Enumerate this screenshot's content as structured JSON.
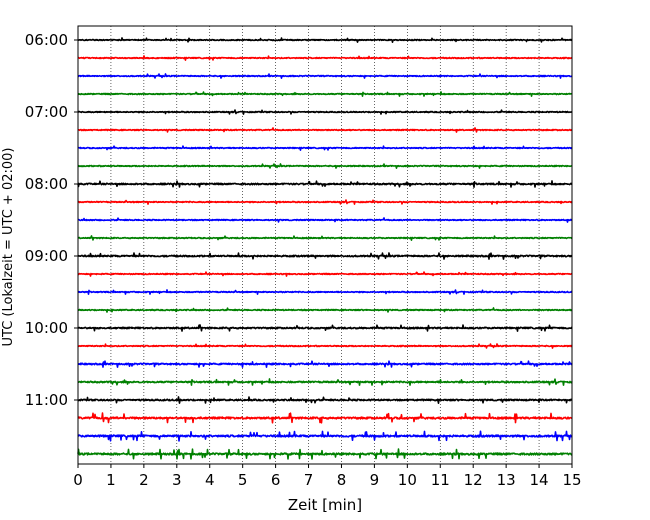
{
  "chart_data": {
    "type": "line",
    "title": "",
    "xlabel": "Zeit  [min]",
    "ylabel": "UTC (Lokalzeit = UTC + 02:00)",
    "xlim": [
      0,
      15
    ],
    "x_ticks": [
      0,
      1,
      2,
      3,
      4,
      5,
      6,
      7,
      8,
      9,
      10,
      11,
      12,
      13,
      14,
      15
    ],
    "y_ticks": [
      "06:00",
      "07:00",
      "08:00",
      "09:00",
      "10:00",
      "11:00"
    ],
    "grid": "vertical dotted",
    "trace_colors": [
      "#000000",
      "#ff0000",
      "#0000ff",
      "#008000"
    ],
    "traces": [
      {
        "start": "06:00",
        "color": "#000000",
        "amplitude": "low"
      },
      {
        "start": "06:15",
        "color": "#ff0000",
        "amplitude": "low"
      },
      {
        "start": "06:30",
        "color": "#0000ff",
        "amplitude": "low"
      },
      {
        "start": "06:45",
        "color": "#008000",
        "amplitude": "low"
      },
      {
        "start": "07:00",
        "color": "#000000",
        "amplitude": "low"
      },
      {
        "start": "07:15",
        "color": "#ff0000",
        "amplitude": "low"
      },
      {
        "start": "07:30",
        "color": "#0000ff",
        "amplitude": "low"
      },
      {
        "start": "07:45",
        "color": "#008000",
        "amplitude": "low"
      },
      {
        "start": "08:00",
        "color": "#000000",
        "amplitude": "medium"
      },
      {
        "start": "08:15",
        "color": "#ff0000",
        "amplitude": "low"
      },
      {
        "start": "08:30",
        "color": "#0000ff",
        "amplitude": "low"
      },
      {
        "start": "08:45",
        "color": "#008000",
        "amplitude": "low"
      },
      {
        "start": "09:00",
        "color": "#000000",
        "amplitude": "medium"
      },
      {
        "start": "09:15",
        "color": "#ff0000",
        "amplitude": "low"
      },
      {
        "start": "09:30",
        "color": "#0000ff",
        "amplitude": "low"
      },
      {
        "start": "09:45",
        "color": "#008000",
        "amplitude": "low"
      },
      {
        "start": "10:00",
        "color": "#000000",
        "amplitude": "medium"
      },
      {
        "start": "10:15",
        "color": "#ff0000",
        "amplitude": "low"
      },
      {
        "start": "10:30",
        "color": "#0000ff",
        "amplitude": "medium"
      },
      {
        "start": "10:45",
        "color": "#008000",
        "amplitude": "medium"
      },
      {
        "start": "11:00",
        "color": "#000000",
        "amplitude": "medium"
      },
      {
        "start": "11:15",
        "color": "#ff0000",
        "amplitude": "high"
      },
      {
        "start": "11:30",
        "color": "#0000ff",
        "amplitude": "high"
      },
      {
        "start": "11:45",
        "color": "#008000",
        "amplitude": "high"
      }
    ]
  }
}
